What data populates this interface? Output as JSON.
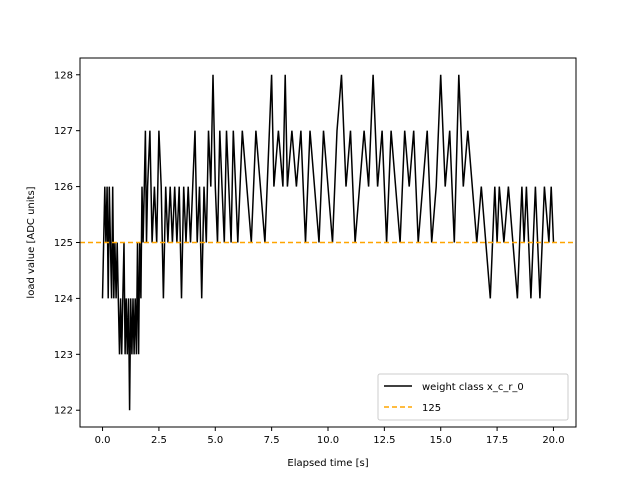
{
  "chart_data": {
    "type": "line",
    "xlabel": "Elapsed time [s]",
    "ylabel": "load value [ADC units]",
    "xlim": [
      -1.0,
      21.0
    ],
    "ylim": [
      121.7,
      128.3
    ],
    "xticks": [
      0.0,
      2.5,
      5.0,
      7.5,
      10.0,
      12.5,
      15.0,
      17.5,
      20.0
    ],
    "xtick_labels": [
      "0.0",
      "2.5",
      "5.0",
      "7.5",
      "10.0",
      "12.5",
      "15.0",
      "17.5",
      "20.0"
    ],
    "yticks": [
      122,
      123,
      124,
      125,
      126,
      127,
      128
    ],
    "ytick_labels": [
      "122",
      "123",
      "124",
      "125",
      "126",
      "127",
      "128"
    ],
    "grid": false,
    "legend_position": "lower-right",
    "series": [
      {
        "name": "weight class x_c_r_0",
        "color": "#000000",
        "style": "solid",
        "x": [
          0.0,
          0.1,
          0.15,
          0.2,
          0.25,
          0.3,
          0.35,
          0.4,
          0.45,
          0.5,
          0.55,
          0.6,
          0.65,
          0.7,
          0.75,
          0.8,
          0.85,
          0.9,
          0.95,
          1.0,
          1.05,
          1.1,
          1.15,
          1.2,
          1.25,
          1.3,
          1.35,
          1.4,
          1.45,
          1.5,
          1.55,
          1.6,
          1.65,
          1.7,
          1.75,
          1.8,
          1.85,
          1.9,
          1.95,
          2.0,
          2.1,
          2.2,
          2.3,
          2.4,
          2.5,
          2.6,
          2.7,
          2.8,
          2.9,
          3.0,
          3.1,
          3.2,
          3.3,
          3.4,
          3.5,
          3.6,
          3.7,
          3.8,
          3.9,
          4.0,
          4.1,
          4.2,
          4.3,
          4.4,
          4.5,
          4.6,
          4.7,
          4.8,
          4.9,
          5.0,
          5.1,
          5.2,
          5.3,
          5.4,
          5.5,
          5.6,
          5.7,
          5.8,
          5.9,
          6.0,
          6.2,
          6.4,
          6.6,
          6.8,
          7.0,
          7.2,
          7.4,
          7.5,
          7.6,
          7.8,
          8.0,
          8.1,
          8.2,
          8.4,
          8.6,
          8.8,
          9.0,
          9.2,
          9.4,
          9.6,
          9.8,
          10.0,
          10.2,
          10.4,
          10.6,
          10.8,
          11.0,
          11.2,
          11.4,
          11.6,
          11.8,
          12.0,
          12.2,
          12.4,
          12.6,
          12.8,
          13.0,
          13.2,
          13.4,
          13.6,
          13.8,
          14.0,
          14.2,
          14.4,
          14.6,
          14.8,
          15.0,
          15.2,
          15.4,
          15.6,
          15.8,
          16.0,
          16.2,
          16.4,
          16.6,
          16.8,
          17.0,
          17.2,
          17.4,
          17.5,
          17.6,
          17.8,
          18.0,
          18.2,
          18.4,
          18.6,
          18.7,
          18.8,
          19.0,
          19.2,
          19.4,
          19.5,
          19.6,
          19.8,
          19.9,
          20.0
        ],
        "y": [
          124,
          126,
          125,
          126,
          124,
          126,
          125,
          124,
          126,
          124,
          125,
          124,
          125,
          124,
          123,
          124,
          123,
          124,
          125,
          123,
          124,
          123,
          124,
          122,
          124,
          123,
          124,
          123,
          124,
          123,
          125,
          123,
          125,
          124,
          126,
          125,
          126,
          127,
          125,
          126,
          127,
          125,
          126,
          125,
          127,
          126,
          124,
          126,
          125,
          126,
          125,
          126,
          125,
          126,
          124,
          126,
          125,
          126,
          125,
          126,
          127,
          125,
          126,
          124,
          126,
          125,
          127,
          126,
          128,
          126,
          125,
          127,
          126,
          125,
          127,
          126,
          125,
          127,
          126,
          125,
          127,
          126,
          125,
          127,
          126,
          125,
          127,
          128,
          126,
          127,
          126,
          128,
          126,
          127,
          126,
          127,
          125,
          127,
          126,
          125,
          127,
          126,
          125,
          127,
          128,
          126,
          127,
          125,
          126,
          127,
          126,
          128,
          126,
          127,
          125,
          127,
          126,
          125,
          127,
          126,
          127,
          125,
          126,
          127,
          125,
          126,
          128,
          126,
          127,
          125,
          128,
          126,
          127,
          126,
          125,
          126,
          125,
          124,
          126,
          125,
          126,
          125,
          126,
          125,
          124,
          126,
          125,
          126,
          124,
          126,
          124,
          125,
          126,
          125,
          126,
          125
        ]
      },
      {
        "name": "125",
        "color": "#ffa500",
        "style": "dashed",
        "y_constant": 125
      }
    ]
  }
}
